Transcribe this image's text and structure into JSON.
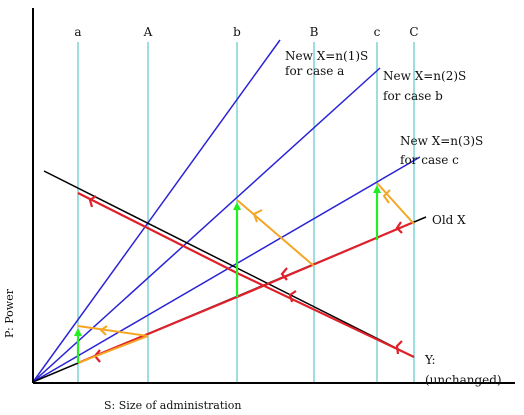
{
  "verticals": [
    {
      "label": "a"
    },
    {
      "label": "A"
    },
    {
      "label": "b"
    },
    {
      "label": "B"
    },
    {
      "label": "c"
    },
    {
      "label": "C"
    }
  ],
  "lines": {
    "case_a": [
      "New X=n(1)S",
      "for case a"
    ],
    "case_b": [
      "New X=n(2)S",
      "for case b"
    ],
    "case_c": [
      "New X=n(3)S",
      "for case c"
    ],
    "old_x": "Old X",
    "y_line": [
      "Y:",
      "(unchanged)"
    ]
  },
  "axes": {
    "x_label": "S: Size of administration",
    "y_label": "P: Power"
  },
  "colors": {
    "vertical": "#7fd4d4",
    "new_x": "#2b24d6",
    "old_x_and_y": "#000000",
    "red_path": "#e0202a",
    "orange_path": "#f5a623",
    "green_arrow": "#22ee22"
  }
}
